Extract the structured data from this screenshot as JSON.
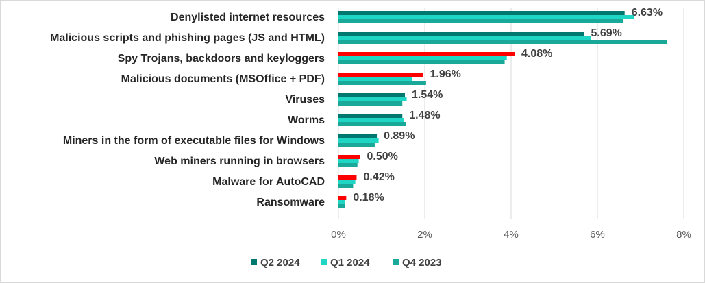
{
  "chart_data": {
    "type": "bar",
    "orientation": "horizontal",
    "categories": [
      "Denylisted internet resources",
      "Malicious scripts and phishing pages (JS and HTML)",
      "Spy Trojans, backdoors and keyloggers",
      "Malicious documents (MSOffice + PDF)",
      "Viruses",
      "Worms",
      "Miners in the form of executable files for Windows",
      "Web miners running in browsers",
      "Malware for AutoCAD",
      "Ransomware"
    ],
    "series": [
      {
        "name": "Q2 2024",
        "color": "#00786f",
        "values": [
          6.63,
          5.69,
          4.08,
          1.96,
          1.54,
          1.48,
          0.89,
          0.5,
          0.42,
          0.18
        ]
      },
      {
        "name": "Q1 2024",
        "color": "#1fd6c4",
        "values": [
          6.85,
          5.85,
          3.9,
          1.7,
          1.58,
          1.52,
          0.93,
          0.47,
          0.39,
          0.15
        ]
      },
      {
        "name": "Q4 2023",
        "color": "#1aa898",
        "values": [
          6.6,
          7.62,
          3.85,
          2.03,
          1.48,
          1.57,
          0.84,
          0.44,
          0.34,
          0.15
        ]
      }
    ],
    "highlight_color": "#ff0000",
    "highlighted_q2_categories": [
      2,
      3,
      7,
      8,
      9
    ],
    "data_labels": [
      "6.63%",
      "5.69%",
      "4.08%",
      "1.96%",
      "1.54%",
      "1.48%",
      "0.89%",
      "0.50%",
      "0.42%",
      "0.18%"
    ],
    "xlim": [
      0,
      8
    ],
    "xticks": [
      "0%",
      "2%",
      "4%",
      "6%",
      "8%"
    ],
    "grid": true,
    "legend_position": "bottom"
  }
}
